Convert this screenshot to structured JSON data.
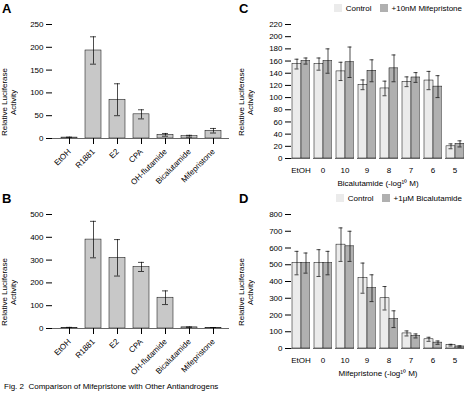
{
  "caption": "Fig. 2  Comparison of Mifepristone with Other Antiandrogens",
  "chart_data": [
    {
      "type": "bar",
      "title": "A",
      "categories": [
        "EtOH",
        "R1881",
        "E2",
        "CPA",
        "OH-flutamide",
        "Bicalutamide",
        "Mifepristone"
      ],
      "values": [
        2,
        193,
        85,
        53,
        8,
        5,
        17
      ],
      "errors": [
        1,
        30,
        35,
        10,
        3,
        2,
        5
      ],
      "color": "#c8c8c8",
      "ylabel": "Relative Luciferase\nActivity",
      "ylim": [
        0,
        250
      ],
      "yticks": [
        0,
        50,
        100,
        150,
        200,
        250
      ]
    },
    {
      "type": "bar",
      "title": "B",
      "categories": [
        "EtOH",
        "R1881",
        "E2",
        "CPA",
        "OH-flutamide",
        "Bicalutamide",
        "Mifepristone"
      ],
      "values": [
        3,
        390,
        310,
        270,
        135,
        5,
        3
      ],
      "errors": [
        2,
        80,
        80,
        20,
        30,
        2,
        1
      ],
      "color": "#c8c8c8",
      "ylabel": "Relative Luciferase\nActivity",
      "ylim": [
        0,
        500
      ],
      "yticks": [
        0,
        100,
        200,
        300,
        400,
        500
      ]
    },
    {
      "type": "bar",
      "title": "C",
      "categories": [
        "EtOH",
        "0",
        "10",
        "9",
        "8",
        "7",
        "6",
        "5"
      ],
      "series": [
        {
          "name": "Control",
          "color": "#ebebeb",
          "values": [
            155,
            155,
            143,
            121,
            115,
            126,
            128,
            20
          ],
          "errors": [
            8,
            10,
            15,
            8,
            12,
            8,
            15,
            4
          ]
        },
        {
          "name": "+10nM Mifepristone",
          "color": "#b0b0b0",
          "values": [
            160,
            160,
            158,
            144,
            148,
            133,
            118,
            24
          ],
          "errors": [
            5,
            20,
            25,
            18,
            22,
            8,
            18,
            5
          ]
        }
      ],
      "xlabel": "Bicalutamide (-log¹⁰ M)",
      "ylabel": "Relative Luciferase\nActivity",
      "ylim": [
        0,
        220
      ],
      "yticks": [
        0,
        20,
        40,
        60,
        80,
        100,
        120,
        140,
        160,
        180,
        200,
        220
      ],
      "legend": "upper right"
    },
    {
      "type": "bar",
      "title": "D",
      "categories": [
        "EtOH",
        "0",
        "10",
        "9",
        "8",
        "7",
        "6",
        "5"
      ],
      "series": [
        {
          "name": "Control",
          "color": "#ebebeb",
          "values": [
            510,
            510,
            620,
            420,
            300,
            90,
            55,
            20
          ],
          "errors": [
            70,
            80,
            100,
            90,
            70,
            15,
            12,
            5
          ]
        },
        {
          "name": "+1μM Bicalutamide",
          "color": "#b0b0b0",
          "values": [
            510,
            510,
            610,
            360,
            175,
            75,
            35,
            12
          ],
          "errors": [
            60,
            70,
            90,
            80,
            50,
            12,
            10,
            4
          ]
        }
      ],
      "xlabel": "Mifepristone (-log¹⁰ M)",
      "ylabel": "Relative Luciferase\nActivity",
      "ylim": [
        0,
        800
      ],
      "yticks": [
        0,
        100,
        200,
        300,
        400,
        500,
        600,
        700,
        800
      ],
      "legend": "upper right"
    }
  ]
}
